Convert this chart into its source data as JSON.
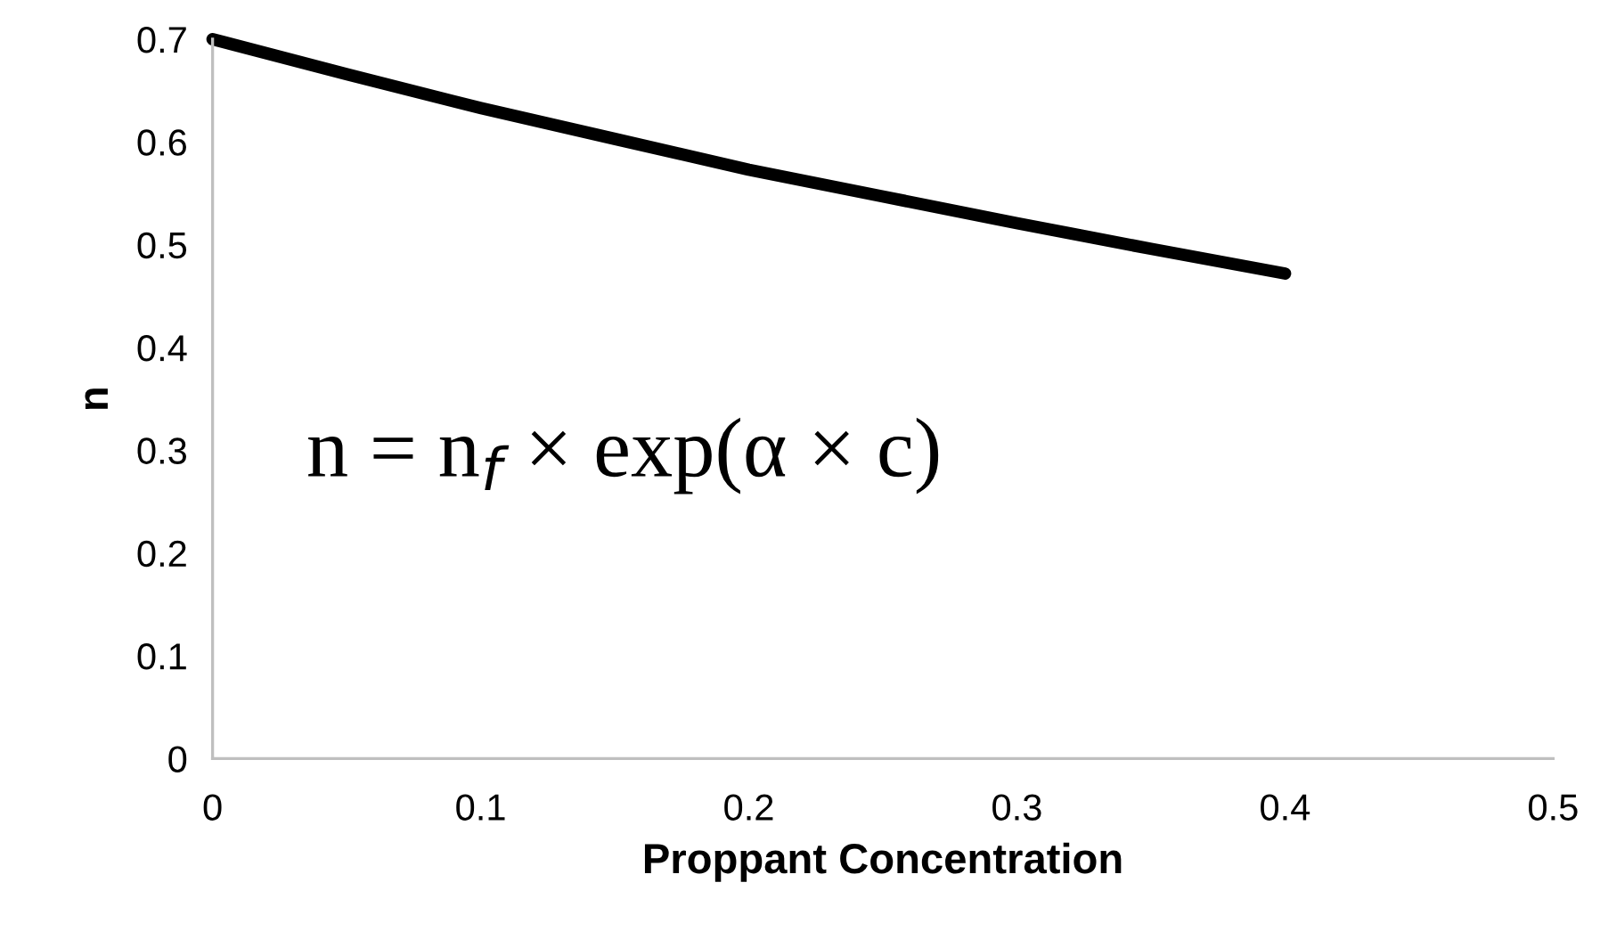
{
  "chart_data": {
    "type": "line",
    "xlabel": "Proppant Concentration",
    "ylabel": "n",
    "x": [
      0,
      0.05,
      0.1,
      0.15,
      0.2,
      0.25,
      0.3,
      0.35,
      0.4
    ],
    "series": [
      {
        "color": "#000000",
        "values": [
          0.7,
          0.666,
          0.633,
          0.603,
          0.573,
          0.547,
          0.521,
          0.496,
          0.472
        ]
      }
    ],
    "xlim": [
      0,
      0.5
    ],
    "xticks": [
      0,
      0.1,
      0.2,
      0.3,
      0.4,
      0.5
    ],
    "ylim": [
      0,
      0.7
    ],
    "yticks": [
      0,
      0.1,
      0.2,
      0.3,
      0.4,
      0.5,
      0.6,
      0.7
    ],
    "grid": false,
    "legend": false,
    "marker": "none",
    "line_style": "solid",
    "annotations": [
      "n = n$_{f}$ × exp(α × c)"
    ]
  }
}
